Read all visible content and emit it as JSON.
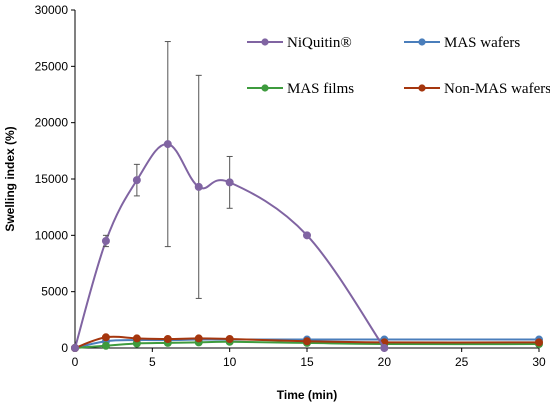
{
  "chart_data": {
    "type": "line",
    "xlabel": "Time (min)",
    "ylabel": "Swelling index (%)",
    "xlim": [
      0,
      30
    ],
    "ylim": [
      0,
      30000
    ],
    "x_ticks": [
      "0",
      "5",
      "10",
      "15",
      "20",
      "25",
      "30"
    ],
    "y_ticks": [
      "0",
      "5000",
      "10000",
      "15000",
      "20000",
      "25000",
      "30000"
    ],
    "grid": false,
    "legend_position": "top-right",
    "smooth": true,
    "series": [
      {
        "name": "NiQuitin®",
        "color": "#8064a2",
        "marker": "circle",
        "points": [
          {
            "x": 0,
            "y": 0
          },
          {
            "x": 2,
            "y": 9500,
            "err": 500
          },
          {
            "x": 4,
            "y": 14900,
            "err": 1400
          },
          {
            "x": 6,
            "y": 18100,
            "err": 9100
          },
          {
            "x": 8,
            "y": 14300,
            "err": 9900
          },
          {
            "x": 10,
            "y": 14700,
            "err": 2300
          },
          {
            "x": 15,
            "y": 10000
          },
          {
            "x": 20,
            "y": 0
          }
        ]
      },
      {
        "name": "MAS wafers",
        "color": "#4a7ebb",
        "marker": "circle",
        "points": [
          {
            "x": 0,
            "y": 0
          },
          {
            "x": 2,
            "y": 600
          },
          {
            "x": 4,
            "y": 700
          },
          {
            "x": 6,
            "y": 700
          },
          {
            "x": 8,
            "y": 750
          },
          {
            "x": 10,
            "y": 750
          },
          {
            "x": 15,
            "y": 750
          },
          {
            "x": 20,
            "y": 750
          },
          {
            "x": 30,
            "y": 750
          }
        ]
      },
      {
        "name": "MAS films",
        "color": "#3e9b3e",
        "marker": "circle",
        "points": [
          {
            "x": 0,
            "y": 0
          },
          {
            "x": 2,
            "y": 200
          },
          {
            "x": 4,
            "y": 400
          },
          {
            "x": 6,
            "y": 450
          },
          {
            "x": 8,
            "y": 500
          },
          {
            "x": 10,
            "y": 550
          },
          {
            "x": 15,
            "y": 450
          },
          {
            "x": 20,
            "y": 350
          },
          {
            "x": 30,
            "y": 350
          }
        ]
      },
      {
        "name": "Non-MAS wafers",
        "color": "#a5360e",
        "marker": "circle",
        "points": [
          {
            "x": 0,
            "y": 0
          },
          {
            "x": 2,
            "y": 950
          },
          {
            "x": 4,
            "y": 850
          },
          {
            "x": 6,
            "y": 800
          },
          {
            "x": 8,
            "y": 850
          },
          {
            "x": 10,
            "y": 800
          },
          {
            "x": 15,
            "y": 600
          },
          {
            "x": 20,
            "y": 500
          },
          {
            "x": 30,
            "y": 500
          }
        ]
      }
    ]
  }
}
